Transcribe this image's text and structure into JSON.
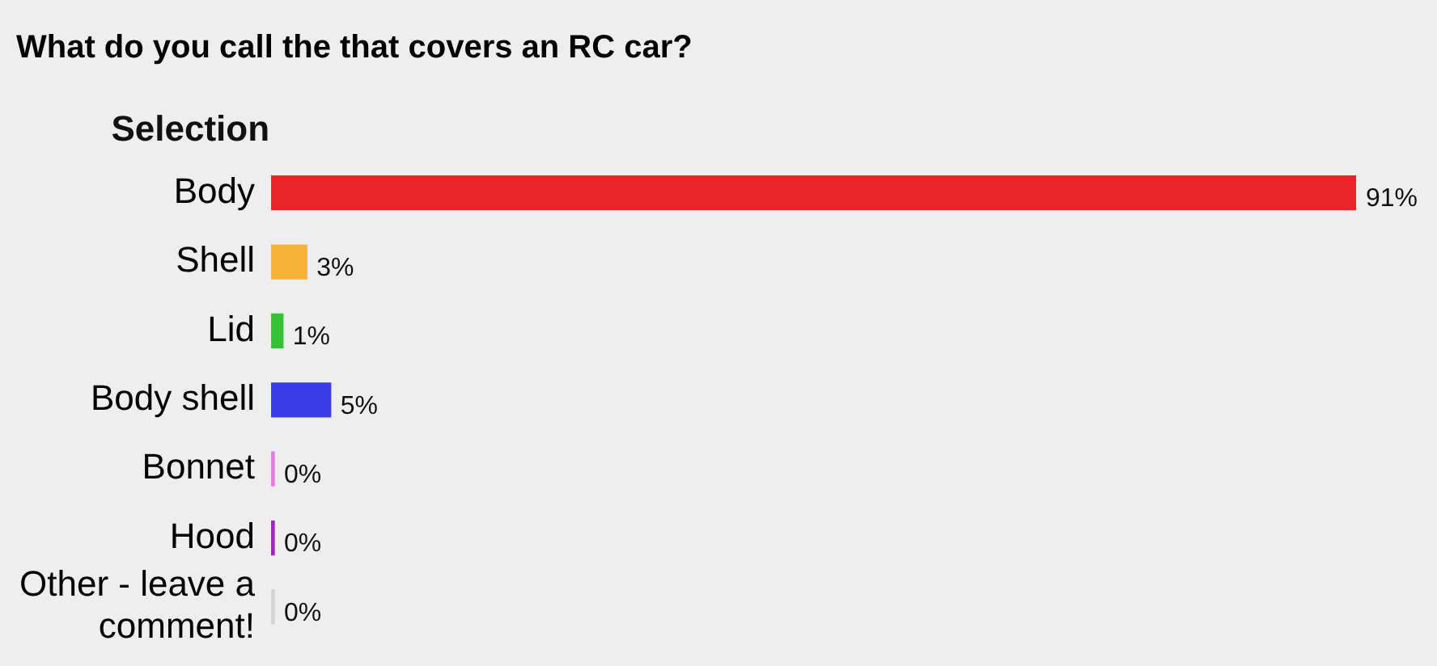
{
  "chart_data": {
    "type": "bar",
    "orientation": "horizontal",
    "title": "What do you call the that covers an RC car?",
    "ylabel": "Selection",
    "categories": [
      "Body",
      "Shell",
      "Lid",
      "Body shell",
      "Bonnet",
      "Hood",
      "Other - leave a comment!"
    ],
    "values": [
      91,
      3,
      1,
      5,
      0,
      0,
      0
    ],
    "colors": [
      "#e8262a",
      "#f6b336",
      "#34c234",
      "#3c3ce6",
      "#e47ae4",
      "#a028c0",
      "#d4d4d4"
    ],
    "value_labels": [
      "91%",
      "3%",
      "1%",
      "5%",
      "0%",
      "0%",
      "0%"
    ],
    "legend": false,
    "grid": false
  }
}
